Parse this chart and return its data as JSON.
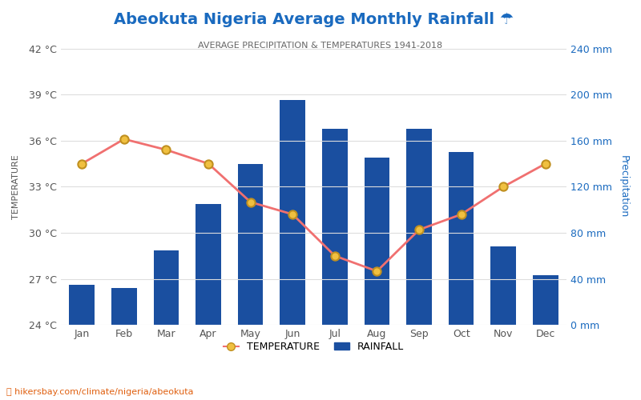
{
  "title": "Abeokuta Nigeria Average Monthly Rainfall ☂",
  "subtitle": "AVERAGE PRECIPITATION & TEMPERATURES 1941-2018",
  "months": [
    "Jan",
    "Feb",
    "Mar",
    "Apr",
    "May",
    "Jun",
    "Jul",
    "Aug",
    "Sep",
    "Oct",
    "Nov",
    "Dec"
  ],
  "rainfall_mm": [
    35,
    32,
    65,
    105,
    140,
    195,
    170,
    145,
    170,
    150,
    68,
    43
  ],
  "temperature_c": [
    34.5,
    36.1,
    35.4,
    34.5,
    32.0,
    31.2,
    28.5,
    27.5,
    30.2,
    31.2,
    33.0,
    34.5
  ],
  "temp_ylim": [
    24,
    42
  ],
  "rain_ylim": [
    0,
    240
  ],
  "temp_ticks": [
    24,
    27,
    30,
    33,
    36,
    39,
    42
  ],
  "rain_ticks": [
    0,
    40,
    80,
    120,
    160,
    200,
    240
  ],
  "bar_color": "#1a4fa0",
  "line_color": "#f07070",
  "marker_color": "#f0c040",
  "marker_edge_color": "#c09020",
  "title_color": "#1a6abf",
  "subtitle_color": "#666666",
  "left_axis_color": "#555555",
  "right_axis_color": "#1a6abf",
  "watermark": "hikersbay.com/climate/nigeria/abeokuta",
  "watermark_color": "#e06010",
  "background_color": "#ffffff",
  "grid_color": "#dddddd"
}
